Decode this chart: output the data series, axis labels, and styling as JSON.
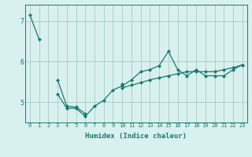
{
  "xlabel": "Humidex (Indice chaleur)",
  "x_values": [
    0,
    1,
    2,
    3,
    4,
    5,
    6,
    7,
    8,
    9,
    10,
    11,
    12,
    13,
    14,
    15,
    16,
    17,
    18,
    19,
    20,
    21,
    22,
    23
  ],
  "line1_y": [
    7.15,
    6.55,
    null,
    5.55,
    4.9,
    4.88,
    4.72,
    null,
    null,
    null,
    5.45,
    null,
    null,
    null,
    null,
    null,
    null,
    null,
    null,
    null,
    null,
    null,
    null,
    null
  ],
  "line2_y": [
    null,
    null,
    null,
    5.2,
    4.85,
    4.85,
    4.65,
    4.9,
    5.05,
    5.3,
    5.4,
    5.55,
    5.75,
    5.8,
    5.9,
    6.25,
    5.8,
    5.65,
    5.8,
    5.65,
    5.65,
    5.65,
    5.8,
    5.92
  ],
  "line3_y": [
    null,
    null,
    null,
    null,
    null,
    null,
    null,
    null,
    null,
    null,
    5.35,
    5.42,
    5.48,
    5.55,
    5.6,
    5.65,
    5.7,
    5.75,
    5.75,
    5.75,
    5.75,
    5.8,
    5.85,
    5.92
  ],
  "line_color": "#1a7a6e",
  "bg_color": "#d8f0ee",
  "grid_color": "#a8ccc8",
  "ylim": [
    4.5,
    7.4
  ],
  "yticks": [
    5,
    6,
    7
  ],
  "marker": "D",
  "markersize": 2.2,
  "linewidth": 0.9,
  "tick_fontsize": 5.0,
  "xlabel_fontsize": 6.5
}
